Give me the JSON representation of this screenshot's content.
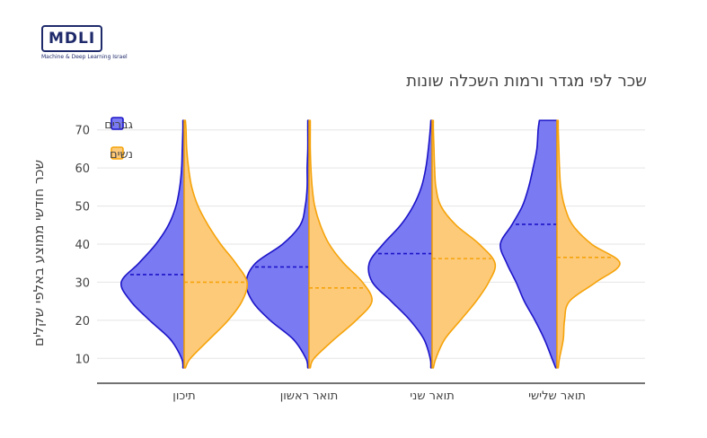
{
  "logo": {
    "text": "MDLI",
    "subtitle": "Machine & Deep Learning Israel"
  },
  "chart_data": {
    "type": "violin",
    "title": "שכר לפי מגדר ורמות השכלה שונות",
    "ylabel": "שכר חודשי ממוצע באלפי שקלים",
    "xlabel": "",
    "ylim": [
      7,
      73
    ],
    "yticks": [
      10,
      20,
      30,
      40,
      50,
      60,
      70
    ],
    "categories": [
      "תיכון",
      "תואר ראשון",
      "תואר שני",
      "תואר שלישי"
    ],
    "grid": "horizontal",
    "legend_position": "top-left",
    "series": [
      {
        "name": "גברים",
        "side": "negative",
        "fill": "#7a7af2",
        "line": "#1c14c8",
        "means": [
          32,
          34,
          37.5,
          45.2
        ],
        "density": [
          [
            [
              7.5,
              0.02
            ],
            [
              10,
              0.04
            ],
            [
              15,
              0.22
            ],
            [
              20,
              0.55
            ],
            [
              25,
              0.85
            ],
            [
              30,
              1.0
            ],
            [
              35,
              0.72
            ],
            [
              40,
              0.45
            ],
            [
              45,
              0.25
            ],
            [
              50,
              0.13
            ],
            [
              55,
              0.07
            ],
            [
              60,
              0.04
            ],
            [
              65,
              0.03
            ],
            [
              70,
              0.02
            ],
            [
              72.5,
              0.02
            ]
          ],
          [
            [
              7.5,
              0.02
            ],
            [
              10,
              0.05
            ],
            [
              15,
              0.25
            ],
            [
              20,
              0.62
            ],
            [
              25,
              0.9
            ],
            [
              30,
              1.0
            ],
            [
              35,
              0.85
            ],
            [
              40,
              0.42
            ],
            [
              45,
              0.14
            ],
            [
              50,
              0.06
            ],
            [
              55,
              0.03
            ],
            [
              60,
              0.03
            ],
            [
              65,
              0.02
            ],
            [
              70,
              0.02
            ],
            [
              72.5,
              0.02
            ]
          ],
          [
            [
              7.5,
              0.02
            ],
            [
              10,
              0.03
            ],
            [
              15,
              0.13
            ],
            [
              20,
              0.35
            ],
            [
              25,
              0.65
            ],
            [
              30,
              0.95
            ],
            [
              35,
              1.0
            ],
            [
              40,
              0.78
            ],
            [
              45,
              0.5
            ],
            [
              50,
              0.3
            ],
            [
              55,
              0.17
            ],
            [
              60,
              0.1
            ],
            [
              65,
              0.06
            ],
            [
              70,
              0.03
            ],
            [
              72.5,
              0.02
            ]
          ],
          [
            [
              7.5,
              0.02
            ],
            [
              10,
              0.08
            ],
            [
              15,
              0.2
            ],
            [
              20,
              0.35
            ],
            [
              25,
              0.52
            ],
            [
              30,
              0.65
            ],
            [
              35,
              0.8
            ],
            [
              40,
              0.9
            ],
            [
              45,
              0.72
            ],
            [
              50,
              0.55
            ],
            [
              55,
              0.45
            ],
            [
              60,
              0.38
            ],
            [
              65,
              0.32
            ],
            [
              70,
              0.3
            ],
            [
              72.5,
              0.28
            ]
          ]
        ]
      },
      {
        "name": "נשים",
        "side": "positive",
        "fill": "#fdca7a",
        "line": "#f5a30a",
        "means": [
          30,
          28.5,
          36.2,
          36.5
        ],
        "density": [
          [
            [
              7.5,
              0.02
            ],
            [
              10,
              0.1
            ],
            [
              15,
              0.4
            ],
            [
              20,
              0.7
            ],
            [
              25,
              0.92
            ],
            [
              30,
              1.0
            ],
            [
              35,
              0.82
            ],
            [
              40,
              0.58
            ],
            [
              45,
              0.38
            ],
            [
              50,
              0.22
            ],
            [
              55,
              0.12
            ],
            [
              60,
              0.07
            ],
            [
              65,
              0.04
            ],
            [
              70,
              0.03
            ],
            [
              72.5,
              0.02
            ]
          ],
          [
            [
              7.5,
              0.02
            ],
            [
              10,
              0.08
            ],
            [
              15,
              0.4
            ],
            [
              20,
              0.75
            ],
            [
              25,
              1.0
            ],
            [
              30,
              0.85
            ],
            [
              35,
              0.55
            ],
            [
              40,
              0.32
            ],
            [
              45,
              0.18
            ],
            [
              50,
              0.09
            ],
            [
              55,
              0.05
            ],
            [
              60,
              0.03
            ],
            [
              65,
              0.02
            ],
            [
              70,
              0.02
            ],
            [
              72.5,
              0.02
            ]
          ],
          [
            [
              7.5,
              0.02
            ],
            [
              10,
              0.06
            ],
            [
              15,
              0.2
            ],
            [
              20,
              0.45
            ],
            [
              25,
              0.7
            ],
            [
              30,
              0.9
            ],
            [
              35,
              1.0
            ],
            [
              40,
              0.75
            ],
            [
              45,
              0.38
            ],
            [
              50,
              0.14
            ],
            [
              55,
              0.06
            ],
            [
              60,
              0.04
            ],
            [
              65,
              0.03
            ],
            [
              70,
              0.02
            ],
            [
              72.5,
              0.02
            ]
          ],
          [
            [
              7.5,
              0.02
            ],
            [
              10,
              0.04
            ],
            [
              15,
              0.1
            ],
            [
              20,
              0.12
            ],
            [
              25,
              0.2
            ],
            [
              30,
              0.62
            ],
            [
              35,
              1.0
            ],
            [
              40,
              0.55
            ],
            [
              45,
              0.25
            ],
            [
              50,
              0.12
            ],
            [
              55,
              0.06
            ],
            [
              60,
              0.04
            ],
            [
              65,
              0.03
            ],
            [
              70,
              0.02
            ],
            [
              72.5,
              0.02
            ]
          ]
        ]
      }
    ]
  }
}
